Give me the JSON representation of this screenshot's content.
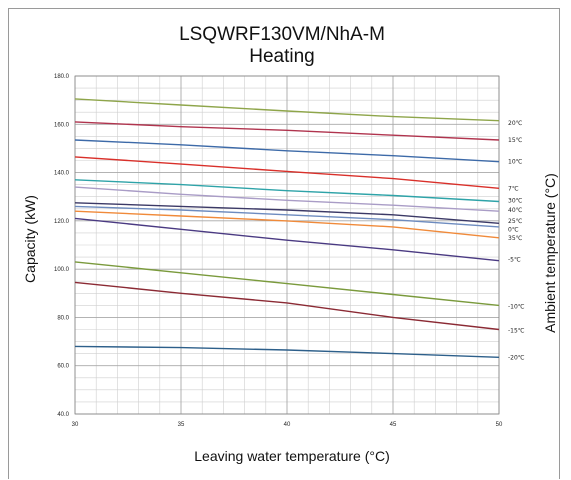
{
  "chart_data": {
    "type": "line",
    "title": [
      "LSQWRF130VM/NhA-M",
      "Heating"
    ],
    "xlabel": "Leaving water temperature (°C)",
    "ylabel": "Capacity (kW)",
    "y2label": "Ambient temperature (°C)",
    "xlim": [
      30,
      50
    ],
    "ylim": [
      40,
      180
    ],
    "x_ticks": [
      30,
      35,
      40,
      45,
      50
    ],
    "y_ticks": [
      "40.0",
      "60.0",
      "80.0",
      "100.0",
      "120.0",
      "140.0",
      "160.0",
      "180.0"
    ],
    "grid": true,
    "x": [
      30,
      35,
      40,
      45,
      50
    ],
    "series": [
      {
        "name": "20℃",
        "color": "#8ea54a",
        "values": [
          170.5,
          168.0,
          165.5,
          163.2,
          161.5
        ]
      },
      {
        "name": "15℃",
        "color": "#b0344e",
        "values": [
          161.0,
          159.0,
          157.5,
          155.5,
          153.5
        ]
      },
      {
        "name": "10℃",
        "color": "#3d6aa8",
        "values": [
          153.5,
          151.5,
          149.0,
          147.0,
          144.5
        ]
      },
      {
        "name": "7℃",
        "color": "#d9302a",
        "values": [
          146.5,
          143.5,
          140.5,
          137.5,
          133.5
        ]
      },
      {
        "name": "30℃",
        "color": "#2ea3a8",
        "values": [
          137.0,
          135.0,
          132.5,
          130.5,
          128.0
        ]
      },
      {
        "name": "40℃",
        "color": "#a99cc6",
        "values": [
          134.0,
          131.0,
          128.5,
          126.5,
          124.0
        ]
      },
      {
        "name": "25℃",
        "color": "#3b3966",
        "values": [
          127.5,
          126.0,
          124.5,
          122.5,
          119.0
        ]
      },
      {
        "name": "0℃",
        "color": "#6d8bbf",
        "values": [
          126.0,
          124.5,
          122.5,
          120.5,
          117.5
        ]
      },
      {
        "name": "35℃",
        "color": "#f08a3a",
        "values": [
          124.0,
          122.0,
          120.0,
          117.5,
          113.0
        ]
      },
      {
        "name": "-5℃",
        "color": "#4a3a82",
        "values": [
          121.0,
          116.5,
          112.0,
          108.0,
          103.5
        ]
      },
      {
        "name": "-10℃",
        "color": "#7a9a3c",
        "values": [
          103.0,
          98.5,
          94.0,
          89.5,
          85.0
        ]
      },
      {
        "name": "-15℃",
        "color": "#8b2a34",
        "values": [
          94.5,
          90.0,
          86.0,
          80.0,
          75.0
        ]
      },
      {
        "name": "-20℃",
        "color": "#2d5f8a",
        "values": [
          68.0,
          67.5,
          66.5,
          65.0,
          63.5
        ]
      }
    ],
    "label_positions": [
      {
        "name": "20℃",
        "y": 160.5
      },
      {
        "name": "15℃",
        "y": 153.5
      },
      {
        "name": "10℃",
        "y": 144.5
      },
      {
        "name": "7℃",
        "y": 133.5
      },
      {
        "name": "30℃",
        "y": 128.5
      },
      {
        "name": "40℃",
        "y": 124.5
      },
      {
        "name": "25℃",
        "y": 120.0
      },
      {
        "name": "0℃",
        "y": 116.5
      },
      {
        "name": "35℃",
        "y": 113.0
      },
      {
        "name": "-5℃",
        "y": 104.0
      },
      {
        "name": "-10℃",
        "y": 84.5
      },
      {
        "name": "-15℃",
        "y": 74.5
      },
      {
        "name": "-20℃",
        "y": 63.5
      }
    ]
  }
}
